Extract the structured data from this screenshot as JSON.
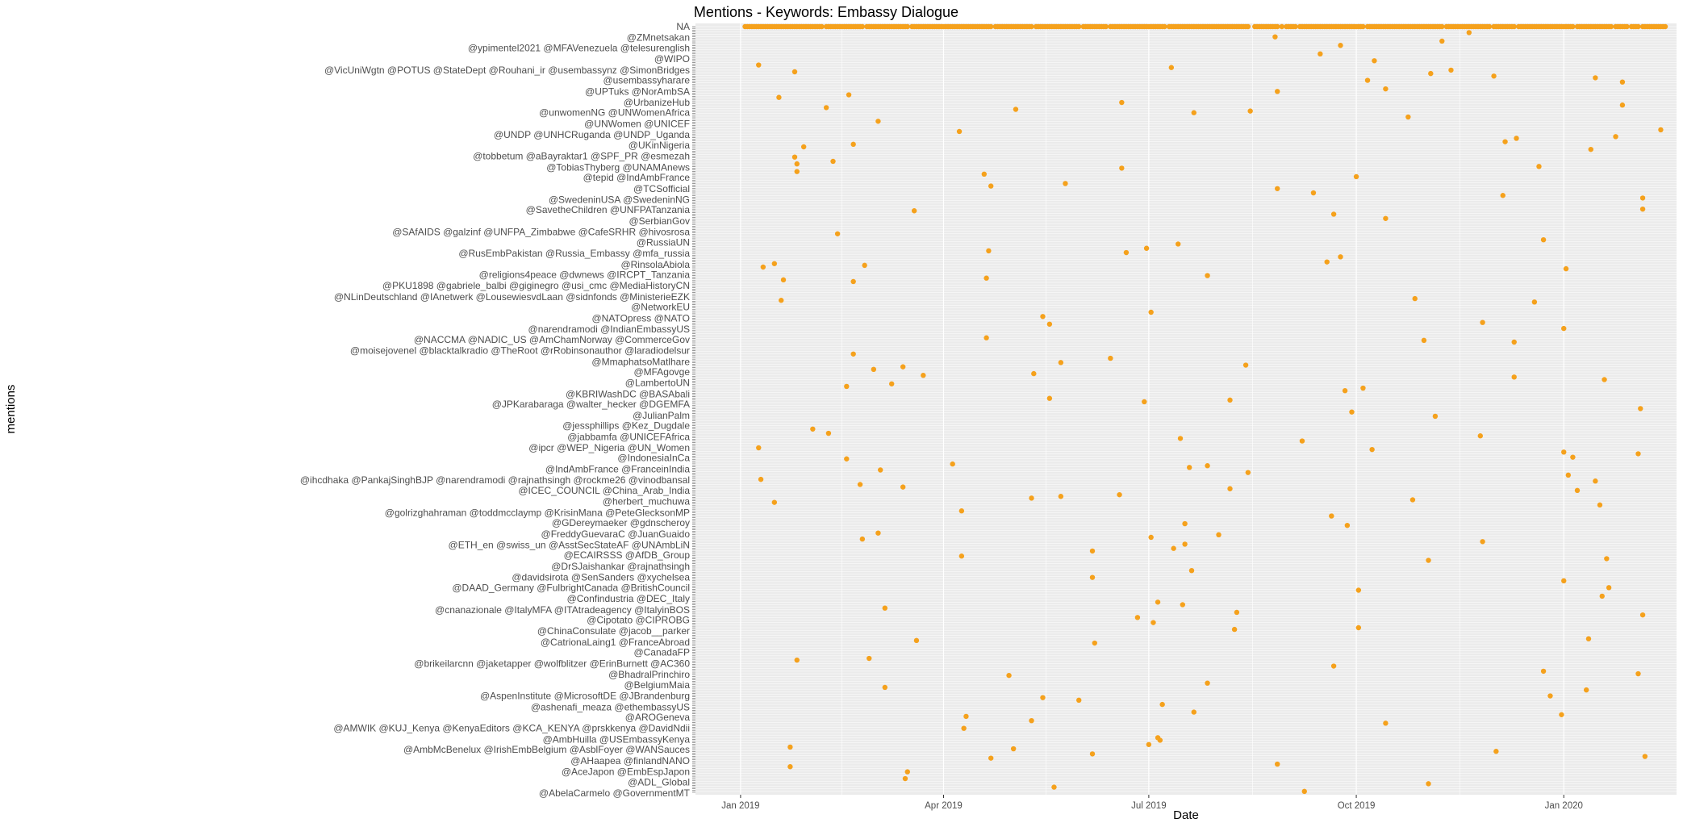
{
  "chart_data": {
    "type": "scatter",
    "title": "Mentions - Keywords: Embassy Dialogue",
    "xlabel": "Date",
    "ylabel": "mentions",
    "grid": true,
    "legend": "none",
    "point_color": "#f5a11c",
    "x_range": [
      "2018-12-12",
      "2020-02-20"
    ],
    "x_ticks": [
      {
        "date": "2019-01-01",
        "label": "Jan 2019"
      },
      {
        "date": "2019-04-01",
        "label": "Apr 2019"
      },
      {
        "date": "2019-07-01",
        "label": "Jul 2019"
      },
      {
        "date": "2019-10-01",
        "label": "Oct 2019"
      },
      {
        "date": "2020-01-01",
        "label": "Jan 2020"
      }
    ],
    "y_tick_labels": [
      "NA",
      "@ZMnetsakan",
      "@ypimentel2021 @MFAVenezuela @telesurenglish",
      "@WIPO",
      "@VicUniWgtn @POTUS @StateDept @Rouhani_ir @usembassynz @SimonBridges",
      "@usembassyharare",
      "@UPTuks @NorAmbSA",
      "@UrbanizeHub",
      "@unwomenNG @UNWomenAfrica",
      "@UNWomen @UNICEF",
      "@UNDP @UNHCRuganda @UNDP_Uganda",
      "@UKinNigeria",
      "@tobbetum @aBayraktar1 @SPF_PR @esmezah",
      "@TobiasThyberg @UNAMAnews",
      "@tepid @IndAmbFrance",
      "@TCSofficial",
      "@SwedeninUSA @SwedeninNG",
      "@SavetheChildren @UNFPATanzania",
      "@SerbianGov",
      "@SAfAIDS @galzinf @UNFPA_Zimbabwe @CafeSRHR @hivosrosa",
      "@RussiaUN",
      "@RusEmbPakistan @Russia_Embassy @mfa_russia",
      "@RinsolaAbiola",
      "@religions4peace @dwnews @IRCPT_Tanzania",
      "@PKU1898 @gabriele_balbi @giginegro @usi_cmc @MediaHistoryCN",
      "@NLinDeutschland @IAnetwerk @LousewiesvdLaan @sidnfonds @MinisterieEZK",
      "@NetworkEU",
      "@NATOpress @NATO",
      "@narendramodi @IndianEmbassyUS",
      "@NACCMA @NADIC_US @AmChamNorway @CommerceGov",
      "@moisejovenel @blacktalkradio @TheRoot @rRobinsonauthor @laradiodelsur",
      "@MmaphatsoMatlhare",
      "@MFAgovge",
      "@LambertoUN",
      "@KBRIWashDC @BASAbali",
      "@JPKarabaraga @walter_hecker @DGEMFA",
      "@JulianPalm",
      "@jessphillips @Kez_Dugdale",
      "@jabbamfa @UNICEFAfrica",
      "@ipcr @WEP_Nigeria @UN_Women",
      "@IndonesiaInCa",
      "@IndAmbFrance @FranceinIndia",
      "@ihcdhaka @PankajSinghBJP @narendramodi @rajnathsingh @rockme26 @vinodbansal",
      "@ICEC_COUNCIL @China_Arab_India",
      "@herbert_muchuwa",
      "@golrizghahraman @toddmcclaymp @KrisinMana @PeteGlecksonMP",
      "@GDereymaeker @gdnscheroy",
      "@FreddyGuevaraC @JuanGuaido",
      "@ETH_en @swiss_un @AsstSecStateAF @UNAmbLiN",
      "@ECAIRSSS @AfDB_Group",
      "@DrSJaishankar @rajnathsingh",
      "@davidsirota @SenSanders @xychelsea",
      "@DAAD_Germany @FulbrightCanada @BritishCouncil",
      "@Confindustria @DEC_Italy",
      "@cnanazionale @ItalyMFA @ITAtradeagency @ItalyinBOS",
      "@Cipotato @CIPROBG",
      "@ChinaConsulate @jacob__parker",
      "@CatrionaLaing1 @FranceAbroad",
      "@CanadaFP",
      "@brikeilarcnn @jaketapper @wolfblitzer @ErinBurnett @AC360",
      "@BhadralPrinchiro",
      "@BelgiumMaia",
      "@AspenInstitute @MicrosoftDE @JBrandenburg",
      "@ashenafi_meaza @ethembassyUS",
      "@AROGeneva",
      "@AMWIK @KUJ_Kenya @KenyaEditors @KCA_KENYA @prskkenya @DavidNdii",
      "@AmbHuilla @USEmbassyKenya",
      "@AmbMcBenelux @IrishEmbBelgium @AsblFoyer @WANSauces",
      "@AHaapea @finlandNANO",
      "@AceJapon @EmbEspJapon",
      "@ADL_Global",
      "@AbelaCarmelo @GovernmentMT"
    ]
  }
}
